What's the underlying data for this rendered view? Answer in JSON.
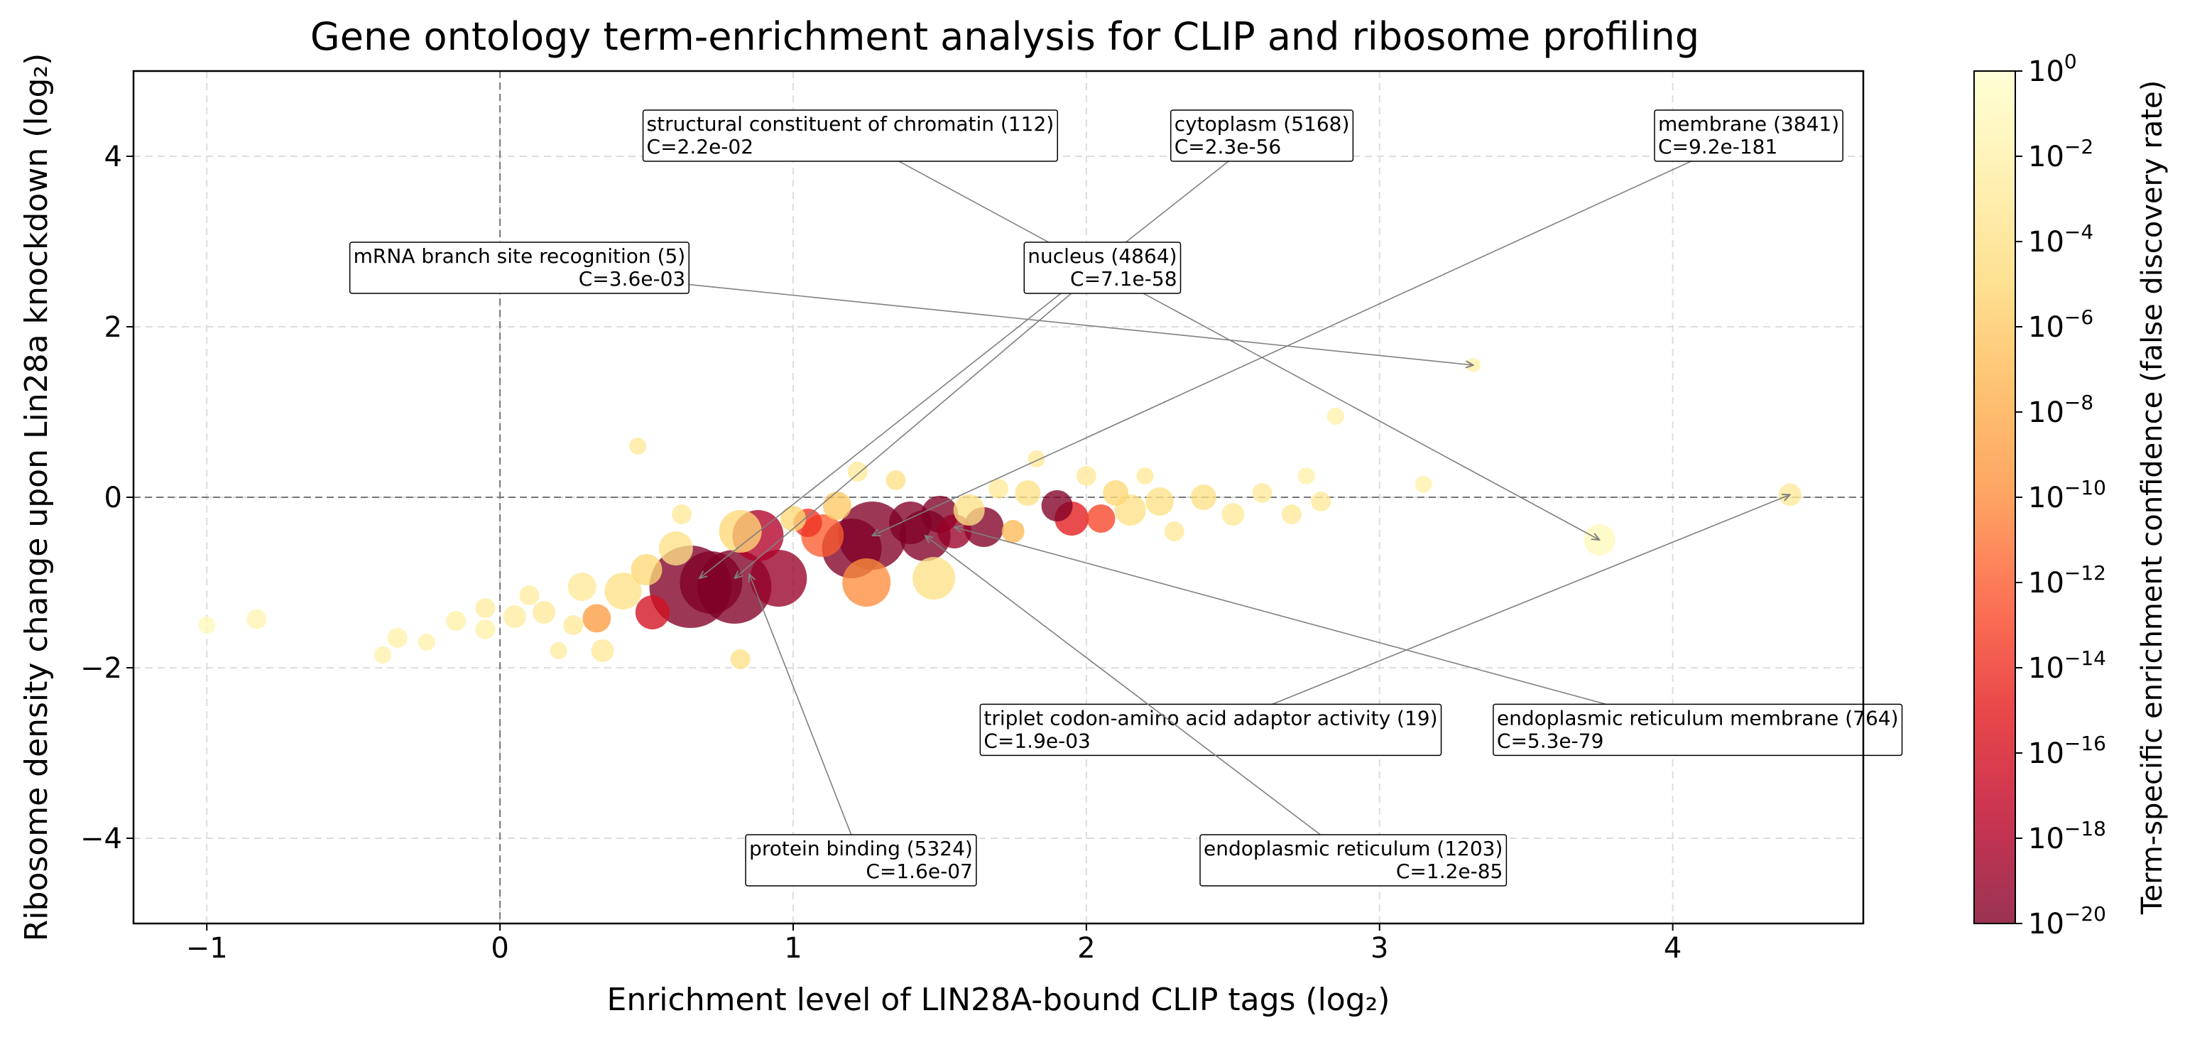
{
  "chart_data": {
    "type": "scatter",
    "title": "Gene ontology term-enrichment analysis for CLIP and ribosome profiling",
    "xlabel": "Enrichment level of LIN28A-bound CLIP tags (log₂)",
    "ylabel": "Ribosome density change upon Lin28a knockdown (log₂)",
    "xlim": [
      -1.25,
      4.65
    ],
    "ylim": [
      -5,
      5
    ],
    "xticks": [
      -1,
      0,
      1,
      2,
      3,
      4
    ],
    "xtick_labels": [
      "−1",
      "0",
      "1",
      "2",
      "3",
      "4"
    ],
    "yticks": [
      -4,
      -2,
      0,
      2,
      4
    ],
    "ytick_labels": [
      "−4",
      "−2",
      "0",
      "2",
      "4"
    ],
    "grid": true,
    "reference_lines": {
      "x": 0,
      "y": 0
    },
    "colorbar": {
      "label": "Term-specific enrichment confidence (false discovery rate)",
      "scale": "log",
      "range": [
        -20,
        0
      ],
      "tick_exponents": [
        "0",
        "−2",
        "−4",
        "−6",
        "−8",
        "−10",
        "−12",
        "−14",
        "−16",
        "−18",
        "−20"
      ],
      "colors": [
        "#800026",
        "#bd0026",
        "#e31a1c",
        "#fc4e2a",
        "#fd8d3c",
        "#feb24c",
        "#fed976",
        "#ffeda0",
        "#ffffcc"
      ]
    },
    "points": [
      {
        "x": -1.0,
        "y": -1.5,
        "size": 12,
        "log10_fdr": -1
      },
      {
        "x": -0.83,
        "y": -1.43,
        "size": 14,
        "log10_fdr": -1.5
      },
      {
        "x": -0.4,
        "y": -1.85,
        "size": 12,
        "log10_fdr": -2
      },
      {
        "x": -0.35,
        "y": -1.65,
        "size": 14,
        "log10_fdr": -2
      },
      {
        "x": -0.25,
        "y": -1.7,
        "size": 12,
        "log10_fdr": -2
      },
      {
        "x": -0.15,
        "y": -1.45,
        "size": 14,
        "log10_fdr": -2
      },
      {
        "x": -0.05,
        "y": -1.3,
        "size": 14,
        "log10_fdr": -2.5
      },
      {
        "x": -0.05,
        "y": -1.55,
        "size": 14,
        "log10_fdr": -2
      },
      {
        "x": 0.05,
        "y": -1.4,
        "size": 16,
        "log10_fdr": -2.5
      },
      {
        "x": 0.1,
        "y": -1.15,
        "size": 14,
        "log10_fdr": -2.5
      },
      {
        "x": 0.15,
        "y": -1.35,
        "size": 16,
        "log10_fdr": -3
      },
      {
        "x": 0.2,
        "y": -1.8,
        "size": 12,
        "log10_fdr": -2.5
      },
      {
        "x": 0.25,
        "y": -1.5,
        "size": 14,
        "log10_fdr": -3
      },
      {
        "x": 0.28,
        "y": -1.05,
        "size": 20,
        "log10_fdr": -3
      },
      {
        "x": 0.33,
        "y": -1.42,
        "size": 20,
        "log10_fdr": -9
      },
      {
        "x": 0.35,
        "y": -1.8,
        "size": 16,
        "log10_fdr": -3
      },
      {
        "x": 0.42,
        "y": -1.1,
        "size": 26,
        "log10_fdr": -4
      },
      {
        "x": 0.47,
        "y": 0.6,
        "size": 12,
        "log10_fdr": -3
      },
      {
        "x": 0.5,
        "y": -0.85,
        "size": 22,
        "log10_fdr": -5
      },
      {
        "x": 0.52,
        "y": -1.35,
        "size": 24,
        "log10_fdr": -16
      },
      {
        "x": 0.6,
        "y": -0.6,
        "size": 24,
        "log10_fdr": -4
      },
      {
        "x": 0.62,
        "y": -0.2,
        "size": 14,
        "log10_fdr": -3
      },
      {
        "x": 0.65,
        "y": -1.05,
        "size": 58,
        "log10_fdr": -20
      },
      {
        "x": 0.72,
        "y": -1.0,
        "size": 44,
        "log10_fdr": -20
      },
      {
        "x": 0.8,
        "y": -1.05,
        "size": 52,
        "log10_fdr": -20
      },
      {
        "x": 0.82,
        "y": -1.9,
        "size": 14,
        "log10_fdr": -4
      },
      {
        "x": 0.82,
        "y": -0.4,
        "size": 30,
        "log10_fdr": -5
      },
      {
        "x": 0.88,
        "y": -0.45,
        "size": 36,
        "log10_fdr": -18
      },
      {
        "x": 0.95,
        "y": -0.95,
        "size": 40,
        "log10_fdr": -19
      },
      {
        "x": 1.0,
        "y": -0.25,
        "size": 18,
        "log10_fdr": -5
      },
      {
        "x": 1.05,
        "y": -0.3,
        "size": 20,
        "log10_fdr": -14
      },
      {
        "x": 1.1,
        "y": -0.45,
        "size": 30,
        "log10_fdr": -12
      },
      {
        "x": 1.15,
        "y": -0.1,
        "size": 20,
        "log10_fdr": -6
      },
      {
        "x": 1.2,
        "y": -0.6,
        "size": 42,
        "log10_fdr": -20
      },
      {
        "x": 1.22,
        "y": 0.3,
        "size": 14,
        "log10_fdr": -3
      },
      {
        "x": 1.25,
        "y": -1.0,
        "size": 34,
        "log10_fdr": -10
      },
      {
        "x": 1.27,
        "y": -0.45,
        "size": 48,
        "log10_fdr": -20
      },
      {
        "x": 1.35,
        "y": 0.2,
        "size": 14,
        "log10_fdr": -4
      },
      {
        "x": 1.4,
        "y": -0.3,
        "size": 30,
        "log10_fdr": -20
      },
      {
        "x": 1.45,
        "y": -0.45,
        "size": 36,
        "log10_fdr": -20
      },
      {
        "x": 1.5,
        "y": -0.2,
        "size": 26,
        "log10_fdr": -20
      },
      {
        "x": 1.48,
        "y": -0.95,
        "size": 30,
        "log10_fdr": -4
      },
      {
        "x": 1.55,
        "y": -0.4,
        "size": 24,
        "log10_fdr": -19
      },
      {
        "x": 1.6,
        "y": -0.15,
        "size": 22,
        "log10_fdr": -4
      },
      {
        "x": 1.65,
        "y": -0.35,
        "size": 28,
        "log10_fdr": -20
      },
      {
        "x": 1.7,
        "y": 0.1,
        "size": 14,
        "log10_fdr": -3
      },
      {
        "x": 1.75,
        "y": -0.4,
        "size": 16,
        "log10_fdr": -7
      },
      {
        "x": 1.8,
        "y": 0.05,
        "size": 18,
        "log10_fdr": -4
      },
      {
        "x": 1.83,
        "y": 0.45,
        "size": 12,
        "log10_fdr": -3
      },
      {
        "x": 1.9,
        "y": -0.1,
        "size": 22,
        "log10_fdr": -20
      },
      {
        "x": 1.95,
        "y": -0.25,
        "size": 24,
        "log10_fdr": -15
      },
      {
        "x": 2.0,
        "y": 0.25,
        "size": 14,
        "log10_fdr": -3
      },
      {
        "x": 2.05,
        "y": -0.25,
        "size": 20,
        "log10_fdr": -13
      },
      {
        "x": 2.1,
        "y": 0.05,
        "size": 18,
        "log10_fdr": -5
      },
      {
        "x": 2.15,
        "y": -0.15,
        "size": 22,
        "log10_fdr": -4
      },
      {
        "x": 2.2,
        "y": 0.25,
        "size": 12,
        "log10_fdr": -3
      },
      {
        "x": 2.25,
        "y": -0.05,
        "size": 20,
        "log10_fdr": -4
      },
      {
        "x": 2.3,
        "y": -0.4,
        "size": 14,
        "log10_fdr": -3
      },
      {
        "x": 2.4,
        "y": 0.0,
        "size": 18,
        "log10_fdr": -4
      },
      {
        "x": 2.5,
        "y": -0.2,
        "size": 16,
        "log10_fdr": -3
      },
      {
        "x": 2.6,
        "y": 0.05,
        "size": 14,
        "log10_fdr": -3
      },
      {
        "x": 2.7,
        "y": -0.2,
        "size": 14,
        "log10_fdr": -3
      },
      {
        "x": 2.75,
        "y": 0.25,
        "size": 12,
        "log10_fdr": -2
      },
      {
        "x": 2.8,
        "y": -0.05,
        "size": 14,
        "log10_fdr": -3
      },
      {
        "x": 2.85,
        "y": 0.95,
        "size": 12,
        "log10_fdr": -2
      },
      {
        "x": 3.15,
        "y": 0.15,
        "size": 12,
        "log10_fdr": -2
      },
      {
        "x": 3.32,
        "y": 1.55,
        "size": 10,
        "log10_fdr": -2
      },
      {
        "x": 3.75,
        "y": -0.5,
        "size": 22,
        "log10_fdr": -1
      },
      {
        "x": 4.4,
        "y": 0.03,
        "size": 16,
        "log10_fdr": -3
      }
    ],
    "annotations": [
      {
        "label": "structural constituent of chromatin (112)",
        "confidence": "C=2.2e-02",
        "align": "left",
        "x": 3.75,
        "y": -0.5,
        "box_x": 0.5,
        "box_y": 4.25
      },
      {
        "label": "cytoplasm (5168)",
        "confidence": "C=2.3e-56",
        "align": "left",
        "x": 0.68,
        "y": -0.95,
        "box_x": 2.3,
        "box_y": 4.25
      },
      {
        "label": "membrane (3841)",
        "confidence": "C=9.2e-181",
        "align": "left",
        "x": 1.27,
        "y": -0.45,
        "box_x": 3.95,
        "box_y": 4.25
      },
      {
        "label": "mRNA branch site recognition (5)",
        "confidence": "C=3.6e-03",
        "align": "right",
        "x": 3.32,
        "y": 1.55,
        "box_x": -0.5,
        "box_y": 2.7
      },
      {
        "label": "nucleus (4864)",
        "confidence": "C=7.1e-58",
        "align": "right",
        "x": 0.8,
        "y": -0.95,
        "box_x": 1.8,
        "box_y": 2.7
      },
      {
        "label": "triplet codon-amino acid adaptor activity (19)",
        "confidence": "C=1.9e-03",
        "align": "left",
        "x": 4.4,
        "y": 0.03,
        "box_x": 1.65,
        "box_y": -2.72
      },
      {
        "label": "endoplasmic reticulum membrane (764)",
        "confidence": "C=5.3e-79",
        "align": "left",
        "x": 1.55,
        "y": -0.35,
        "box_x": 3.4,
        "box_y": -2.72
      },
      {
        "label": "protein binding (5324)",
        "confidence": "C=1.6e-07",
        "align": "right",
        "x": 0.85,
        "y": -0.9,
        "box_x": 0.85,
        "box_y": -4.25
      },
      {
        "label": "endoplasmic reticulum (1203)",
        "confidence": "C=1.2e-85",
        "align": "right",
        "x": 1.45,
        "y": -0.45,
        "box_x": 2.4,
        "box_y": -4.25
      }
    ]
  }
}
